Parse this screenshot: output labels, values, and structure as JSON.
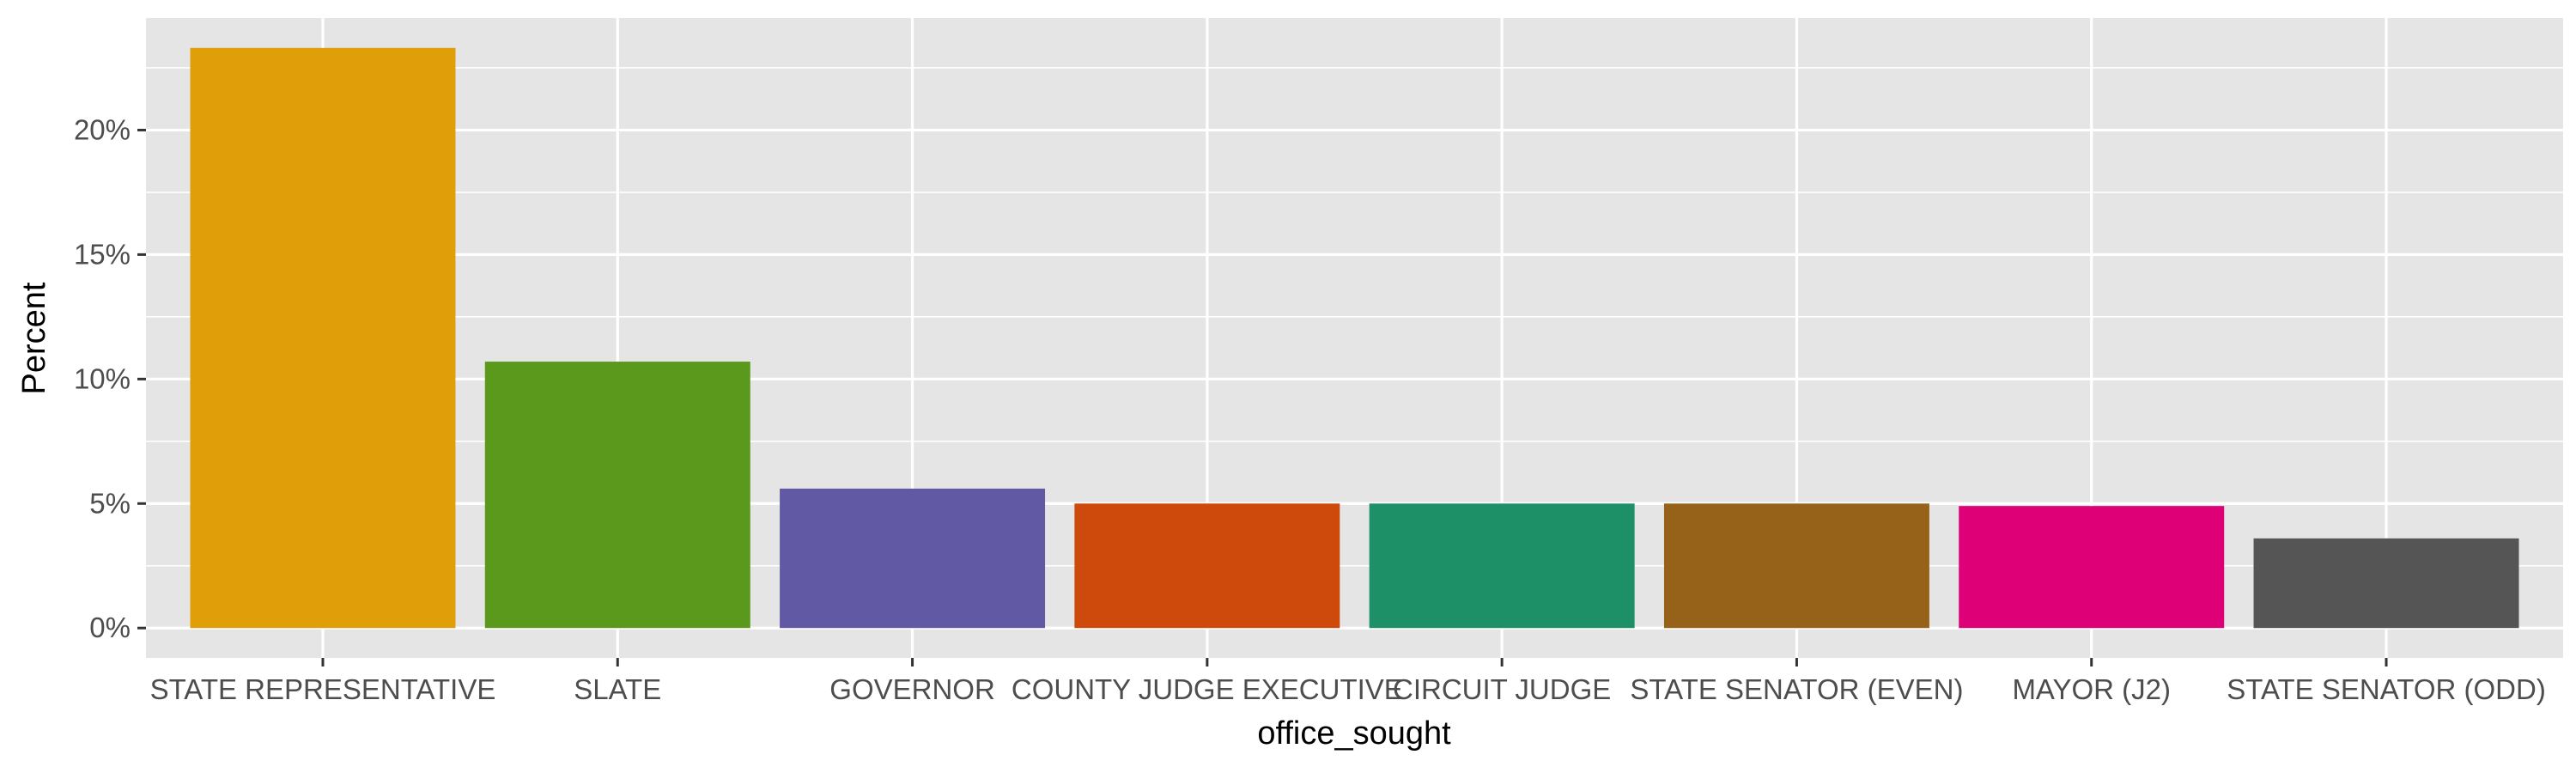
{
  "chart_data": {
    "type": "bar",
    "xlabel": "office_sought",
    "ylabel": "Percent",
    "categories": [
      "STATE REPRESENTATIVE",
      "SLATE",
      "GOVERNOR",
      "COUNTY JUDGE EXECUTIVE",
      "CIRCUIT JUDGE",
      "STATE SENATOR (EVEN)",
      "MAYOR (J2)",
      "STATE SENATOR (ODD)"
    ],
    "values": [
      23.3,
      10.7,
      5.6,
      5.0,
      5.0,
      5.0,
      4.9,
      3.6
    ],
    "colors": [
      "#E09F08",
      "#5A991B",
      "#6159A4",
      "#CE4A0C",
      "#1D9068",
      "#966219",
      "#DE0077",
      "#555555"
    ],
    "yticks": [
      0,
      5,
      10,
      15,
      20
    ],
    "ytick_labels": [
      "0%",
      "5%",
      "10%",
      "15%",
      "20%"
    ],
    "ylim": [
      -1.2,
      24.5
    ],
    "grid": true,
    "legend": "none",
    "panel_background": "#E5E5E5",
    "gridline_color": "#FFFFFF"
  }
}
